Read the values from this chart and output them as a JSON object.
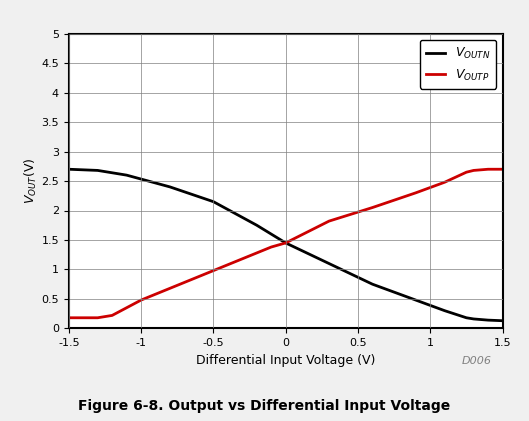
{
  "title": "Figure 6-8. Output vs Differential Input Voltage",
  "xlabel": "Differential Input Voltage (V)",
  "xlim": [
    -1.5,
    1.5
  ],
  "ylim": [
    0,
    5
  ],
  "xticks": [
    -1.5,
    -1.0,
    -0.5,
    0.0,
    0.5,
    1.0,
    1.5
  ],
  "yticks": [
    0,
    0.5,
    1.0,
    1.5,
    2.0,
    2.5,
    3.0,
    3.5,
    4.0,
    4.5,
    5.0
  ],
  "voutn_x": [
    -1.5,
    -1.3,
    -1.1,
    -0.8,
    -0.5,
    -0.2,
    0.0,
    0.3,
    0.6,
    0.9,
    1.1,
    1.25,
    1.3,
    1.4,
    1.5
  ],
  "voutn_y": [
    2.7,
    2.68,
    2.6,
    2.4,
    2.15,
    1.75,
    1.45,
    1.1,
    0.75,
    0.48,
    0.3,
    0.18,
    0.16,
    0.14,
    0.13
  ],
  "voutp_x": [
    -1.5,
    -1.3,
    -1.2,
    -1.0,
    -0.7,
    -0.4,
    -0.1,
    0.0,
    0.3,
    0.6,
    0.9,
    1.1,
    1.25,
    1.3,
    1.4,
    1.5
  ],
  "voutp_y": [
    0.18,
    0.18,
    0.22,
    0.48,
    0.78,
    1.08,
    1.38,
    1.45,
    1.82,
    2.05,
    2.3,
    2.48,
    2.65,
    2.68,
    2.7,
    2.7
  ],
  "voutn_color": "#000000",
  "voutp_color": "#cc0000",
  "line_width": 2.0,
  "watermark": "D006",
  "plot_bg_color": "#ffffff",
  "grid_color": "#808080",
  "border_color": "#000000",
  "fig_bg_color": "#f0f0f0"
}
